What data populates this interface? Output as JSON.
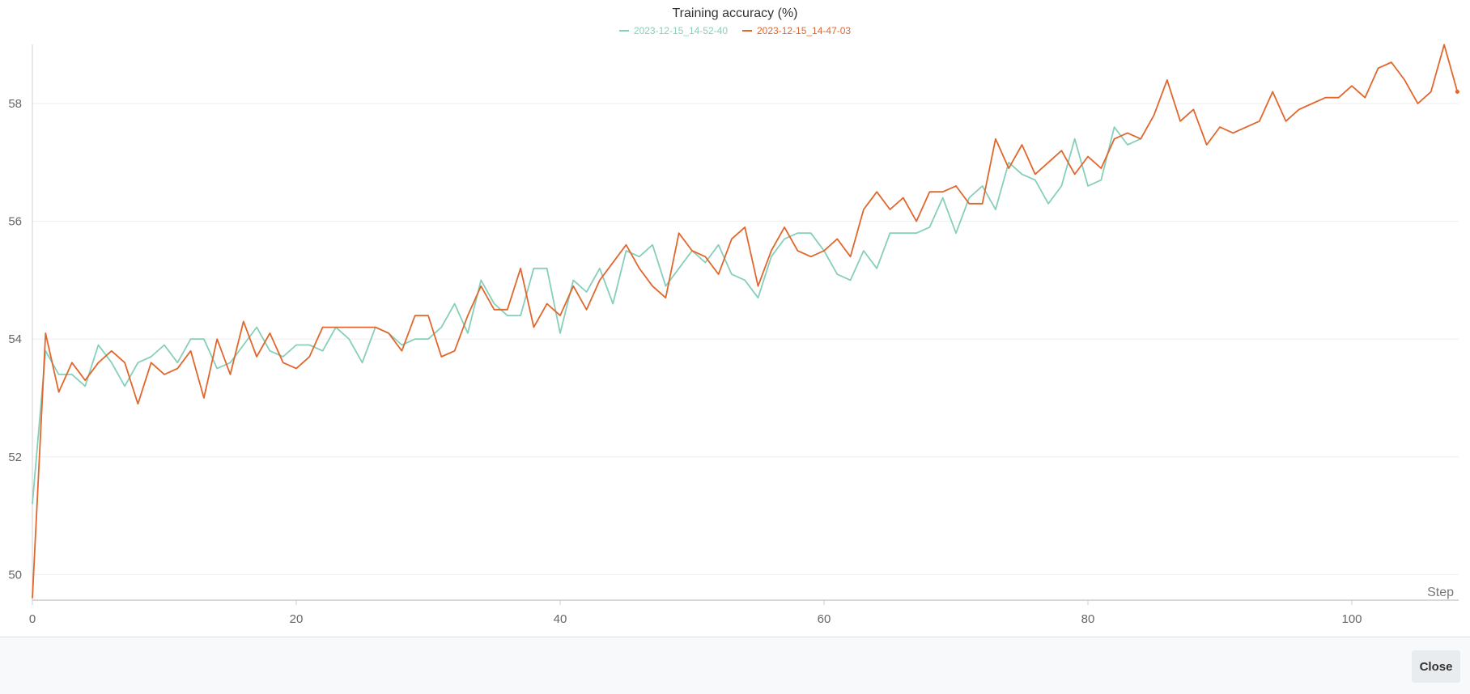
{
  "chart_data": {
    "type": "line",
    "title": "Training accuracy (%)",
    "xlabel": "Step",
    "ylabel": "",
    "xlim": [
      0,
      108
    ],
    "ylim": [
      49.6,
      59.0
    ],
    "xticks": [
      0,
      20,
      40,
      60,
      80,
      100
    ],
    "yticks": [
      50,
      52,
      54,
      56,
      58
    ],
    "legend_position": "top-center",
    "grid": "horizontal",
    "series": [
      {
        "name": "2023-12-15_14-52-40",
        "color": "#86cfba",
        "x": [
          0,
          1,
          2,
          3,
          4,
          5,
          6,
          7,
          8,
          9,
          10,
          11,
          12,
          13,
          14,
          15,
          16,
          17,
          18,
          19,
          20,
          21,
          22,
          23,
          24,
          25,
          26,
          27,
          28,
          29,
          30,
          31,
          32,
          33,
          34,
          35,
          36,
          37,
          38,
          39,
          40,
          41,
          42,
          43,
          44,
          45,
          46,
          47,
          48,
          49,
          50,
          51,
          52,
          53,
          54,
          55,
          56,
          57,
          58,
          59,
          60,
          61,
          62,
          63,
          64,
          65,
          66,
          67,
          68,
          69,
          70,
          71,
          72,
          73,
          74,
          75,
          76,
          77,
          78,
          79,
          80,
          81,
          82,
          83,
          84
        ],
        "y": [
          51.2,
          53.8,
          53.4,
          53.4,
          53.2,
          53.9,
          53.6,
          53.2,
          53.6,
          53.7,
          53.9,
          53.6,
          54.0,
          54.0,
          53.5,
          53.6,
          53.9,
          54.2,
          53.8,
          53.7,
          53.9,
          53.9,
          53.8,
          54.2,
          54.0,
          53.6,
          54.2,
          54.1,
          53.9,
          54.0,
          54.0,
          54.2,
          54.6,
          54.1,
          55.0,
          54.6,
          54.4,
          54.4,
          55.2,
          55.2,
          54.1,
          55.0,
          54.8,
          55.2,
          54.6,
          55.5,
          55.4,
          55.6,
          54.9,
          55.2,
          55.5,
          55.3,
          55.6,
          55.1,
          55.0,
          54.7,
          55.4,
          55.7,
          55.8,
          55.8,
          55.5,
          55.1,
          55.0,
          55.5,
          55.2,
          55.8,
          55.8,
          55.8,
          55.9,
          56.4,
          55.8,
          56.4,
          56.6,
          56.2,
          57.0,
          56.8,
          56.7,
          56.3,
          56.6,
          57.4,
          56.6,
          56.7,
          57.6,
          57.3,
          57.4
        ]
      },
      {
        "name": "2023-12-15_14-47-03",
        "color": "#e0672d",
        "x": [
          0,
          1,
          2,
          3,
          4,
          5,
          6,
          7,
          8,
          9,
          10,
          11,
          12,
          13,
          14,
          15,
          16,
          17,
          18,
          19,
          20,
          21,
          22,
          23,
          24,
          25,
          26,
          27,
          28,
          29,
          30,
          31,
          32,
          33,
          34,
          35,
          36,
          37,
          38,
          39,
          40,
          41,
          42,
          43,
          44,
          45,
          46,
          47,
          48,
          49,
          50,
          51,
          52,
          53,
          54,
          55,
          56,
          57,
          58,
          59,
          60,
          61,
          62,
          63,
          64,
          65,
          66,
          67,
          68,
          69,
          70,
          71,
          72,
          73,
          74,
          75,
          76,
          77,
          78,
          79,
          80,
          81,
          82,
          83,
          84,
          85,
          86,
          87,
          88,
          89,
          90,
          91,
          92,
          93,
          94,
          95,
          96,
          97,
          98,
          99,
          100,
          101,
          102,
          103,
          104,
          105,
          106,
          107,
          108
        ],
        "y": [
          49.6,
          54.1,
          53.1,
          53.6,
          53.3,
          53.6,
          53.8,
          53.6,
          52.9,
          53.6,
          53.4,
          53.5,
          53.8,
          53.0,
          54.0,
          53.4,
          54.3,
          53.7,
          54.1,
          53.6,
          53.5,
          53.7,
          54.2,
          54.2,
          54.2,
          54.2,
          54.2,
          54.1,
          53.8,
          54.4,
          54.4,
          53.7,
          53.8,
          54.4,
          54.9,
          54.5,
          54.5,
          55.2,
          54.2,
          54.6,
          54.4,
          54.9,
          54.5,
          55.0,
          55.3,
          55.6,
          55.2,
          54.9,
          54.7,
          55.8,
          55.5,
          55.4,
          55.1,
          55.7,
          55.9,
          54.9,
          55.5,
          55.9,
          55.5,
          55.4,
          55.5,
          55.7,
          55.4,
          56.2,
          56.5,
          56.2,
          56.4,
          56.0,
          56.5,
          56.5,
          56.6,
          56.3,
          56.3,
          57.4,
          56.9,
          57.3,
          56.8,
          57.0,
          57.2,
          56.8,
          57.1,
          56.9,
          57.4,
          57.5,
          57.4,
          57.8,
          58.4,
          57.7,
          57.9,
          57.3,
          57.6,
          57.5,
          57.6,
          57.7,
          58.2,
          57.7,
          57.9,
          58.0,
          58.1,
          58.1,
          58.3,
          58.1,
          58.6,
          58.7,
          58.4,
          58.0,
          58.2,
          59.0,
          58.2
        ]
      }
    ]
  },
  "footer": {
    "close_label": "Close"
  }
}
